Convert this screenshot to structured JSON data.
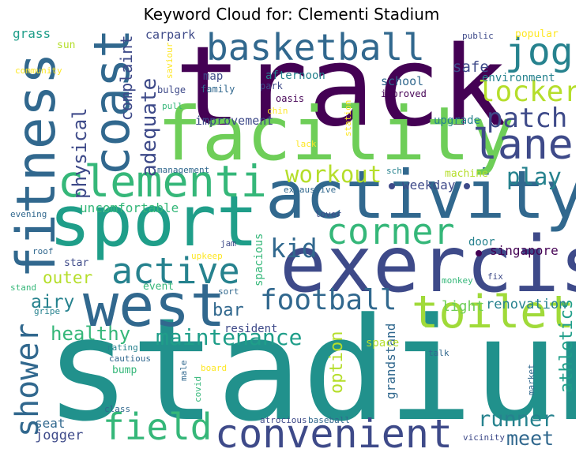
{
  "title": "Keyword Cloud for: Clementi Stadium",
  "colors": {
    "dark_purple": "#440154",
    "indigo": "#3e4a89",
    "blue": "#31688e",
    "teal": "#26828e",
    "sea_green": "#1f9e89",
    "green": "#35b779",
    "lime": "#6ece58",
    "yellow_green": "#b5de2b",
    "yellow": "#fde725"
  },
  "words": [
    {
      "text": "track",
      "color": "#440154"
    },
    {
      "text": "stadium",
      "color": "#21918c"
    },
    {
      "text": "exercise",
      "color": "#3e4a89"
    },
    {
      "text": "activity",
      "color": "#31688e"
    },
    {
      "text": "facility",
      "color": "#6ece58"
    },
    {
      "text": "sport",
      "color": "#1f9e89"
    },
    {
      "text": "west",
      "color": "#31688e"
    },
    {
      "text": "fitness",
      "color": "#31688e"
    },
    {
      "text": "coast",
      "color": "#31688e"
    },
    {
      "text": "clementi",
      "color": "#35b779"
    },
    {
      "text": "convenient",
      "color": "#3e4a89"
    },
    {
      "text": "toilet",
      "color": "#a0da39"
    },
    {
      "text": "basketball",
      "color": "#31688e"
    },
    {
      "text": "lane",
      "color": "#3e4a89"
    },
    {
      "text": "jog",
      "color": "#26828e"
    },
    {
      "text": "field",
      "color": "#35b779"
    },
    {
      "text": "corner",
      "color": "#35b779"
    },
    {
      "text": "active",
      "color": "#26828e"
    },
    {
      "text": "football",
      "color": "#31688e"
    },
    {
      "text": "shower",
      "color": "#31688e"
    },
    {
      "text": "locker",
      "color": "#b5de2b"
    },
    {
      "text": "patch",
      "color": "#3e4a89"
    },
    {
      "text": "workout",
      "color": "#b5de2b"
    },
    {
      "text": "maintenance",
      "color": "#1f9e89"
    },
    {
      "text": "adequate",
      "color": "#3e4a89"
    },
    {
      "text": "kid",
      "color": "#31688e"
    },
    {
      "text": "play",
      "color": "#26828e"
    },
    {
      "text": "physical",
      "color": "#3e4a89"
    },
    {
      "text": "complaint",
      "color": "#3e4a89"
    },
    {
      "text": "runner",
      "color": "#26828e"
    },
    {
      "text": "meet",
      "color": "#31688e"
    },
    {
      "text": "athletics",
      "color": "#1f9e89"
    },
    {
      "text": "healthy",
      "color": "#35b779"
    },
    {
      "text": "airy",
      "color": "#26828e"
    },
    {
      "text": "outer",
      "color": "#b5de2b"
    },
    {
      "text": "bar",
      "color": "#31688e"
    },
    {
      "text": "option",
      "color": "#b5de2b"
    },
    {
      "text": "renovation",
      "color": "#26828e"
    },
    {
      "text": "light",
      "color": "#6ece58"
    },
    {
      "text": "singapore",
      "color": "#440154"
    },
    {
      "text": "weekday",
      "color": "#3e4a89"
    },
    {
      "text": "safe",
      "color": "#3e4a89"
    },
    {
      "text": "uncomfortable",
      "color": "#35b779"
    },
    {
      "text": "jogger",
      "color": "#3e4a89"
    },
    {
      "text": "seat",
      "color": "#31688e"
    },
    {
      "text": "grass",
      "color": "#1f9e89"
    },
    {
      "text": "carpark",
      "color": "#3e4a89"
    },
    {
      "text": "improvement",
      "color": "#3e4a89"
    },
    {
      "text": "upgrade",
      "color": "#26828e"
    },
    {
      "text": "school",
      "color": "#31688e"
    },
    {
      "text": "environment",
      "color": "#26828e"
    },
    {
      "text": "afternoon",
      "color": "#26828e"
    },
    {
      "text": "map",
      "color": "#3e4a89"
    },
    {
      "text": "grandstand",
      "color": "#31688e"
    },
    {
      "text": "spacious",
      "color": "#35b779"
    },
    {
      "text": "door",
      "color": "#26828e"
    },
    {
      "text": "space",
      "color": "#b5de2b"
    },
    {
      "text": "resident",
      "color": "#3e4a89"
    },
    {
      "text": "event",
      "color": "#35b779"
    },
    {
      "text": "machine",
      "color": "#b5de2b"
    },
    {
      "text": "popular",
      "color": "#fde725"
    },
    {
      "text": "public",
      "color": "#3e4a89"
    },
    {
      "text": "sun",
      "color": "#b5de2b"
    },
    {
      "text": "community",
      "color": "#fde725"
    },
    {
      "text": "saviour",
      "color": "#fde725"
    },
    {
      "text": "bulge",
      "color": "#3e4a89"
    },
    {
      "text": "family",
      "color": "#31688e"
    },
    {
      "text": "park",
      "color": "#3e4a89"
    },
    {
      "text": "oasis",
      "color": "#440154"
    },
    {
      "text": "improved",
      "color": "#440154"
    },
    {
      "text": "station",
      "color": "#fde725"
    },
    {
      "text": "pull",
      "color": "#35b779"
    },
    {
      "text": "chin",
      "color": "#fde725"
    },
    {
      "text": "lack",
      "color": "#fde725"
    },
    {
      "text": "management",
      "color": "#31688e"
    },
    {
      "text": "sch",
      "color": "#26828e"
    },
    {
      "text": "exhaustive",
      "color": "#31688e"
    },
    {
      "text": "evening",
      "color": "#31688e"
    },
    {
      "text": "lover",
      "color": "#3e4a89"
    },
    {
      "text": "jam",
      "color": "#3e4a89"
    },
    {
      "text": "upkeep",
      "color": "#fde725"
    },
    {
      "text": "roof",
      "color": "#31688e"
    },
    {
      "text": "star",
      "color": "#3e4a89"
    },
    {
      "text": "stand",
      "color": "#35b779"
    },
    {
      "text": "gripe",
      "color": "#26828e"
    },
    {
      "text": "sort",
      "color": "#31688e"
    },
    {
      "text": "monkey",
      "color": "#35b779"
    },
    {
      "text": "fix",
      "color": "#3e4a89"
    },
    {
      "text": "talk",
      "color": "#31688e"
    },
    {
      "text": "rating",
      "color": "#26828e"
    },
    {
      "text": "cautious",
      "color": "#31688e"
    },
    {
      "text": "bump",
      "color": "#35b779"
    },
    {
      "text": "board",
      "color": "#fde725"
    },
    {
      "text": "male",
      "color": "#31688e"
    },
    {
      "text": "covid",
      "color": "#35b779"
    },
    {
      "text": "class",
      "color": "#31688e"
    },
    {
      "text": "market",
      "color": "#31688e"
    },
    {
      "text": "atrocious",
      "color": "#3e4a89"
    },
    {
      "text": "baseball",
      "color": "#31688e"
    },
    {
      "text": "vicinity",
      "color": "#3e4a89"
    }
  ]
}
